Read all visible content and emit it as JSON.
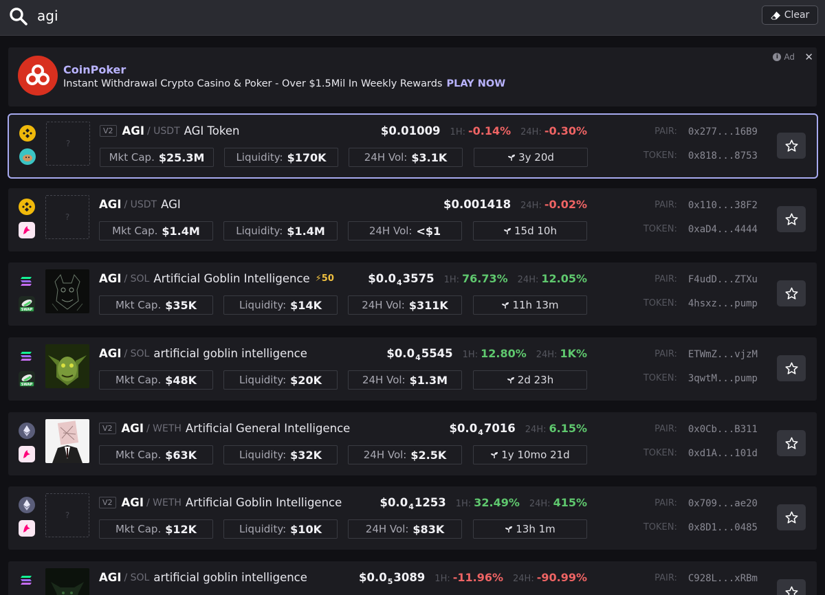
{
  "search": {
    "query": "agi",
    "clear_label": "Clear"
  },
  "ad": {
    "title": "CoinPoker",
    "text": "Instant Withdrawal Crypto Casino & Poker - Over $1.5Mil In Weekly Rewards",
    "cta": "PLAY NOW",
    "badge": "Ad",
    "close": "✕"
  },
  "labels": {
    "mcap": "Mkt Cap.",
    "liquidity": "Liquidity:",
    "volume": "24H Vol:",
    "h1": "1H:",
    "h24": "24H:",
    "pair": "PAIR:",
    "token": "TOKEN:",
    "placeholder": "?"
  },
  "colors": {
    "accent": "#b9b3ff",
    "negative": "#ef6464",
    "positive": "#5fc86e",
    "selected_border": "#a7aaf0"
  },
  "rows": [
    {
      "chain_icon": "bnb-icon",
      "dex_icon": "pancakeswap-icon",
      "thumb": "placeholder",
      "version": "V2",
      "base": "AGI",
      "quote": "/ USDT",
      "name": "AGI Token",
      "boost": "",
      "price_main": "$0.01009",
      "price_sub": "",
      "price_tail": "",
      "h1": "-0.14%",
      "h1_dir": "neg",
      "h24": "-0.30%",
      "h24_dir": "neg",
      "mcap": "$25.3M",
      "liquidity": "$170K",
      "volume": "$3.1K",
      "age": "3y 20d",
      "pair": "0x277...16B9",
      "token": "0x818...8753",
      "selected": true
    },
    {
      "chain_icon": "bnb-icon",
      "dex_icon": "uniswap-icon",
      "thumb": "placeholder",
      "version": "",
      "base": "AGI",
      "quote": "/ USDT",
      "name": "AGI",
      "boost": "",
      "price_main": "$0.001418",
      "price_sub": "",
      "price_tail": "",
      "h1": "",
      "h1_dir": "",
      "h24": "-0.02%",
      "h24_dir": "neg",
      "mcap": "$1.4M",
      "liquidity": "$1.4M",
      "volume": "<$1",
      "age": "15d 10h",
      "pair": "0x110...38F2",
      "token": "0xaD4...4444",
      "selected": false
    },
    {
      "chain_icon": "solana-icon",
      "dex_icon": "pumpswap-icon",
      "thumb": "goblin-sketch",
      "version": "",
      "base": "AGI",
      "quote": "/ SOL",
      "name": "Artificial Goblin Intelligence",
      "boost": "⚡50",
      "price_main": "$0.0",
      "price_sub": "4",
      "price_tail": "3575",
      "h1": "76.73%",
      "h1_dir": "pos",
      "h24": "12.05%",
      "h24_dir": "pos",
      "mcap": "$35K",
      "liquidity": "$14K",
      "volume": "$311K",
      "age": "11h 13m",
      "pair": "F4udD...ZTXu",
      "token": "4hsxz...pump",
      "selected": false
    },
    {
      "chain_icon": "solana-icon",
      "dex_icon": "pumpswap-icon",
      "thumb": "goblin-green",
      "version": "",
      "base": "AGI",
      "quote": "/ SOL",
      "name": "artificial goblin intelligence",
      "boost": "",
      "price_main": "$0.0",
      "price_sub": "4",
      "price_tail": "5545",
      "h1": "12.80%",
      "h1_dir": "pos",
      "h24": "1K%",
      "h24_dir": "pos",
      "mcap": "$48K",
      "liquidity": "$20K",
      "volume": "$1.3M",
      "age": "2d 23h",
      "pair": "ETWmZ...vjzM",
      "token": "3qwtM...pump",
      "selected": false
    },
    {
      "chain_icon": "ethereum-icon",
      "dex_icon": "uniswap-icon",
      "thumb": "suit-figure",
      "version": "V2",
      "base": "AGI",
      "quote": "/ WETH",
      "name": "Artificial General Intelligence",
      "boost": "",
      "price_main": "$0.0",
      "price_sub": "4",
      "price_tail": "7016",
      "h1": "",
      "h1_dir": "",
      "h24": "6.15%",
      "h24_dir": "pos",
      "mcap": "$63K",
      "liquidity": "$32K",
      "volume": "$2.5K",
      "age": "1y 10mo 21d",
      "pair": "0x0Cb...B311",
      "token": "0xd1A...101d",
      "selected": false
    },
    {
      "chain_icon": "ethereum-icon",
      "dex_icon": "uniswap-icon",
      "thumb": "placeholder",
      "version": "V2",
      "base": "AGI",
      "quote": "/ WETH",
      "name": "Artificial Goblin Intelligence",
      "boost": "",
      "price_main": "$0.0",
      "price_sub": "4",
      "price_tail": "1253",
      "h1": "32.49%",
      "h1_dir": "pos",
      "h24": "415%",
      "h24_dir": "pos",
      "mcap": "$12K",
      "liquidity": "$10K",
      "volume": "$83K",
      "age": "13h 1m",
      "pair": "0x709...ae20",
      "token": "0x8D1...0485",
      "selected": false
    },
    {
      "chain_icon": "solana-icon",
      "dex_icon": "pumpswap-icon",
      "thumb": "goblin-dark",
      "version": "",
      "base": "AGI",
      "quote": "/ SOL",
      "name": "artificial goblin intelligence",
      "boost": "",
      "price_main": "$0.0",
      "price_sub": "5",
      "price_tail": "3089",
      "h1": "-11.96%",
      "h1_dir": "neg",
      "h24": "-90.99%",
      "h24_dir": "neg",
      "mcap": "",
      "liquidity": "",
      "volume": "",
      "age": "",
      "pair": "C928L...xRBm",
      "token": "",
      "selected": false
    }
  ]
}
